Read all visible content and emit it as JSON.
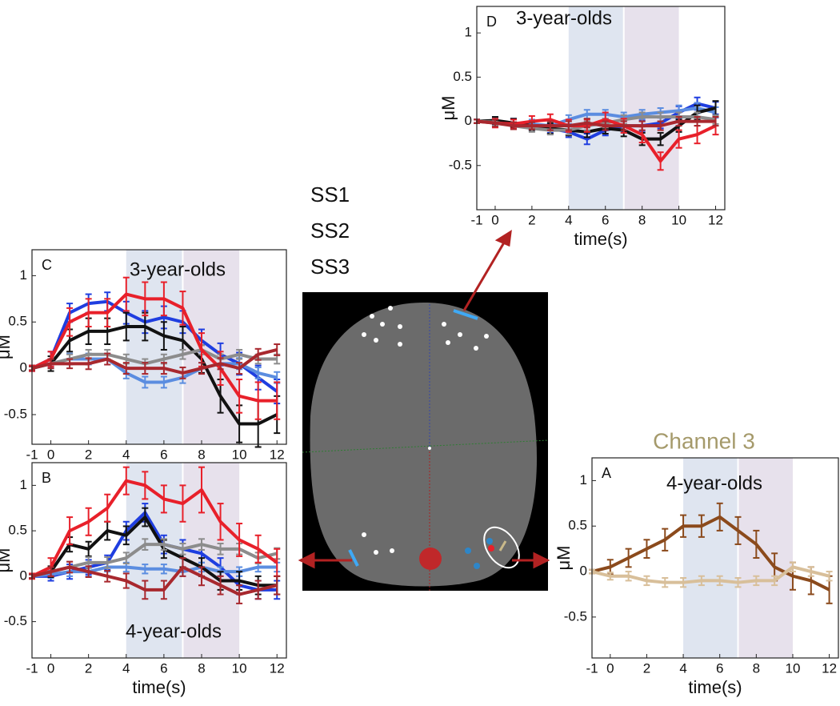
{
  "legend": [
    {
      "name": "SS1",
      "color": "#2e86c8"
    },
    {
      "name": "SS2",
      "color": "#111111"
    },
    {
      "name": "SS3",
      "color": "#e8202a"
    }
  ],
  "chart_data": [
    {
      "type": "line",
      "panel": "D",
      "title": "3-year-olds",
      "xlabel": "time(s)",
      "ylabel": "μM",
      "x": [
        -1,
        0,
        1,
        2,
        3,
        4,
        5,
        6,
        7,
        8,
        9,
        10,
        11,
        12
      ],
      "xlim": [
        -1,
        12.5
      ],
      "ylim": [
        -1,
        1.3
      ],
      "xticks": [
        -1,
        0,
        2,
        4,
        6,
        8,
        10,
        12
      ],
      "yticks": [
        -0.5,
        0,
        0.5,
        1
      ],
      "shading": [
        {
          "range": [
            4,
            7
          ],
          "color": "#dfe5f0"
        },
        {
          "range": [
            7,
            10
          ],
          "color": "#e7e1ec"
        }
      ],
      "series": [
        {
          "color": "#1f3ee0",
          "values": [
            0,
            0,
            -0.02,
            -0.05,
            -0.08,
            -0.12,
            -0.2,
            -0.1,
            -0.05,
            -0.05,
            -0.02,
            0.1,
            0.2,
            0.15
          ],
          "errors": [
            0.02,
            0.05,
            0.05,
            0.05,
            0.05,
            0.06,
            0.06,
            0.06,
            0.06,
            0.06,
            0.06,
            0.07,
            0.07,
            0.07
          ]
        },
        {
          "color": "#5b8de0",
          "values": [
            0,
            0,
            -0.02,
            -0.03,
            -0.05,
            0.02,
            0.08,
            0.08,
            0.05,
            0.08,
            0.1,
            0.12,
            0.15,
            0.1
          ],
          "errors": [
            0.02,
            0.04,
            0.05,
            0.05,
            0.05,
            0.05,
            0.05,
            0.05,
            0.05,
            0.05,
            0.05,
            0.06,
            0.06,
            0.06
          ]
        },
        {
          "color": "#111111",
          "values": [
            0,
            0.01,
            -0.02,
            -0.05,
            -0.08,
            -0.1,
            -0.12,
            -0.08,
            -0.1,
            -0.2,
            -0.2,
            -0.05,
            0.1,
            0.15
          ],
          "errors": [
            0.02,
            0.04,
            0.05,
            0.05,
            0.06,
            0.06,
            0.06,
            0.06,
            0.07,
            0.07,
            0.07,
            0.07,
            0.08,
            0.08
          ]
        },
        {
          "color": "#8c8c8c",
          "values": [
            0,
            -0.01,
            -0.05,
            -0.08,
            -0.1,
            -0.1,
            -0.05,
            -0.02,
            0.02,
            0.05,
            0.05,
            0.05,
            0.05,
            0.02
          ],
          "errors": [
            0.02,
            0.04,
            0.04,
            0.04,
            0.05,
            0.05,
            0.05,
            0.05,
            0.05,
            0.05,
            0.05,
            0.05,
            0.05,
            0.05
          ]
        },
        {
          "color": "#e8202a",
          "values": [
            0,
            -0.02,
            -0.03,
            0,
            0.02,
            -0.05,
            -0.05,
            0.02,
            -0.05,
            -0.15,
            -0.45,
            -0.2,
            -0.15,
            -0.05
          ],
          "errors": [
            0.02,
            0.05,
            0.05,
            0.06,
            0.06,
            0.07,
            0.07,
            0.08,
            0.08,
            0.09,
            0.1,
            0.1,
            0.1,
            0.1
          ]
        },
        {
          "color": "#a8282e",
          "values": [
            0,
            -0.02,
            -0.05,
            -0.05,
            -0.05,
            -0.05,
            -0.02,
            -0.05,
            -0.05,
            -0.05,
            -0.05,
            0,
            0,
            0
          ],
          "errors": [
            0.02,
            0.04,
            0.04,
            0.04,
            0.05,
            0.05,
            0.05,
            0.05,
            0.05,
            0.05,
            0.05,
            0.05,
            0.05,
            0.05
          ]
        }
      ]
    },
    {
      "type": "line",
      "panel": "C",
      "title": "3-year-olds",
      "xlabel": null,
      "ylabel": "μM",
      "x": [
        -1,
        0,
        1,
        2,
        3,
        4,
        5,
        6,
        7,
        8,
        9,
        10,
        11,
        12
      ],
      "xlim": [
        -1,
        12.5
      ],
      "ylim": [
        -0.82,
        1.28
      ],
      "xticks": [
        -1,
        0,
        2,
        4,
        6,
        8,
        10,
        12
      ],
      "yticks": [
        -0.5,
        0,
        0.5,
        1
      ],
      "shading": [
        {
          "range": [
            4,
            7
          ],
          "color": "#dfe5f0"
        },
        {
          "range": [
            7,
            10
          ],
          "color": "#e7e1ec"
        }
      ],
      "series": [
        {
          "color": "#1f3ee0",
          "values": [
            0,
            0.1,
            0.6,
            0.7,
            0.72,
            0.6,
            0.5,
            0.55,
            0.5,
            0.3,
            0.15,
            0.05,
            -0.1,
            -0.25
          ],
          "errors": [
            0.03,
            0.08,
            0.1,
            0.1,
            0.1,
            0.12,
            0.12,
            0.12,
            0.12,
            0.12,
            0.12,
            0.12,
            0.13,
            0.13
          ]
        },
        {
          "color": "#5b8de0",
          "values": [
            0,
            0.05,
            0.1,
            0.1,
            0.1,
            -0.05,
            -0.15,
            -0.15,
            -0.1,
            0,
            0.05,
            0.05,
            -0.05,
            -0.1
          ],
          "errors": [
            0.02,
            0.05,
            0.06,
            0.06,
            0.06,
            0.06,
            0.06,
            0.06,
            0.06,
            0.06,
            0.06,
            0.06,
            0.06,
            0.06
          ]
        },
        {
          "color": "#111111",
          "values": [
            0,
            0.05,
            0.3,
            0.4,
            0.4,
            0.45,
            0.45,
            0.35,
            0.3,
            0.1,
            -0.3,
            -0.6,
            -0.6,
            -0.5
          ],
          "errors": [
            0.03,
            0.08,
            0.12,
            0.14,
            0.14,
            0.15,
            0.15,
            0.15,
            0.15,
            0.15,
            0.18,
            0.2,
            0.25,
            0.2
          ]
        },
        {
          "color": "#8c8c8c",
          "values": [
            0,
            0.05,
            0.1,
            0.15,
            0.15,
            0.1,
            0.05,
            0.1,
            0.15,
            0.2,
            0.1,
            0.15,
            0.1,
            0.1
          ],
          "errors": [
            0.02,
            0.05,
            0.05,
            0.05,
            0.05,
            0.05,
            0.05,
            0.05,
            0.05,
            0.05,
            0.05,
            0.05,
            0.05,
            0.05
          ]
        },
        {
          "color": "#e8202a",
          "values": [
            0,
            0.1,
            0.5,
            0.6,
            0.6,
            0.8,
            0.75,
            0.75,
            0.65,
            0.2,
            0,
            -0.3,
            -0.35,
            -0.35
          ],
          "errors": [
            0.03,
            0.08,
            0.15,
            0.15,
            0.15,
            0.18,
            0.18,
            0.18,
            0.18,
            0.18,
            0.18,
            0.18,
            0.2,
            0.2
          ]
        },
        {
          "color": "#a8282e",
          "values": [
            0,
            0.05,
            0.05,
            0.05,
            0.1,
            0,
            0,
            0,
            -0.05,
            0,
            0.05,
            0,
            0.15,
            0.2
          ],
          "errors": [
            0.02,
            0.05,
            0.05,
            0.06,
            0.06,
            0.06,
            0.06,
            0.06,
            0.06,
            0.06,
            0.06,
            0.06,
            0.06,
            0.06
          ]
        }
      ]
    },
    {
      "type": "line",
      "panel": "B",
      "title": "4-year-olds",
      "xlabel": "time(s)",
      "ylabel": "μM",
      "x": [
        -1,
        0,
        1,
        2,
        3,
        4,
        5,
        6,
        7,
        8,
        9,
        10,
        11,
        12
      ],
      "xlim": [
        -1,
        12.5
      ],
      "ylim": [
        -0.9,
        1.25
      ],
      "xticks": [
        -1,
        0,
        2,
        4,
        6,
        8,
        10,
        12
      ],
      "yticks": [
        -0.5,
        0,
        0.5,
        1
      ],
      "shading": [
        {
          "range": [
            4,
            7
          ],
          "color": "#dfe5f0"
        },
        {
          "range": [
            7,
            10
          ],
          "color": "#e7e1ec"
        }
      ],
      "series": [
        {
          "color": "#1f3ee0",
          "values": [
            0,
            0,
            0.05,
            0.1,
            0.15,
            0.5,
            0.7,
            0.35,
            0.3,
            0.25,
            0.1,
            -0.1,
            -0.15,
            -0.15
          ],
          "errors": [
            0.02,
            0.05,
            0.08,
            0.08,
            0.08,
            0.1,
            0.1,
            0.1,
            0.1,
            0.1,
            0.1,
            0.1,
            0.1,
            0.1
          ]
        },
        {
          "color": "#5b8de0",
          "values": [
            0,
            0.02,
            0.05,
            0.05,
            0.1,
            0.1,
            0.08,
            0.08,
            0.05,
            0.1,
            0.05,
            0.05,
            0.1,
            0.1
          ],
          "errors": [
            0.02,
            0.04,
            0.05,
            0.05,
            0.05,
            0.05,
            0.05,
            0.05,
            0.05,
            0.05,
            0.05,
            0.05,
            0.05,
            0.05
          ]
        },
        {
          "color": "#111111",
          "values": [
            0,
            0.05,
            0.35,
            0.3,
            0.5,
            0.45,
            0.65,
            0.3,
            0.2,
            0.1,
            -0.05,
            -0.05,
            -0.1,
            -0.1
          ],
          "errors": [
            0.02,
            0.06,
            0.08,
            0.08,
            0.1,
            0.1,
            0.1,
            0.1,
            0.1,
            0.1,
            0.1,
            0.1,
            0.1,
            0.1
          ]
        },
        {
          "color": "#8c8c8c",
          "values": [
            0,
            0.05,
            0.1,
            0.15,
            0.15,
            0.2,
            0.35,
            0.35,
            0.3,
            0.35,
            0.3,
            0.3,
            0.2,
            0.25
          ],
          "errors": [
            0.02,
            0.05,
            0.06,
            0.06,
            0.06,
            0.06,
            0.06,
            0.06,
            0.06,
            0.06,
            0.06,
            0.06,
            0.06,
            0.06
          ]
        },
        {
          "color": "#e8202a",
          "values": [
            0,
            0.1,
            0.5,
            0.6,
            0.75,
            1.05,
            1.0,
            0.85,
            0.8,
            0.95,
            0.6,
            0.4,
            0.3,
            0.15
          ],
          "errors": [
            0.03,
            0.1,
            0.15,
            0.15,
            0.15,
            0.15,
            0.15,
            0.15,
            0.2,
            0.25,
            0.2,
            0.18,
            0.15,
            0.15
          ]
        },
        {
          "color": "#a8282e",
          "values": [
            0,
            0.05,
            0.1,
            0.05,
            0,
            -0.05,
            -0.15,
            -0.15,
            0.1,
            0,
            -0.1,
            -0.2,
            -0.15,
            -0.1
          ],
          "errors": [
            0.02,
            0.05,
            0.06,
            0.06,
            0.06,
            0.08,
            0.1,
            0.1,
            0.1,
            0.1,
            0.1,
            0.1,
            0.1,
            0.1
          ]
        }
      ]
    },
    {
      "type": "line",
      "panel": "A",
      "heading": "Channel 3",
      "title": "4-year-olds",
      "xlabel": "time(s)",
      "ylabel": "μM",
      "x": [
        -1,
        0,
        1,
        2,
        3,
        4,
        5,
        6,
        7,
        8,
        9,
        10,
        11,
        12
      ],
      "xlim": [
        -1,
        12.5
      ],
      "ylim": [
        -0.95,
        1.25
      ],
      "xticks": [
        -1,
        0,
        2,
        4,
        6,
        8,
        10,
        12
      ],
      "yticks": [
        -0.5,
        0,
        0.5,
        1
      ],
      "shading": [
        {
          "range": [
            4,
            7
          ],
          "color": "#dfe5f0"
        },
        {
          "range": [
            7,
            10
          ],
          "color": "#e7e1ec"
        }
      ],
      "series": [
        {
          "color": "#8b4a1c",
          "values": [
            0,
            0.05,
            0.15,
            0.25,
            0.35,
            0.5,
            0.5,
            0.6,
            0.45,
            0.3,
            0.05,
            -0.05,
            -0.1,
            -0.2
          ],
          "errors": [
            0.02,
            0.08,
            0.1,
            0.1,
            0.12,
            0.12,
            0.12,
            0.15,
            0.15,
            0.15,
            0.15,
            0.15,
            0.15,
            0.15
          ]
        },
        {
          "color": "#d8bf9a",
          "values": [
            0,
            -0.05,
            -0.05,
            -0.1,
            -0.12,
            -0.12,
            -0.1,
            -0.1,
            -0.12,
            -0.1,
            -0.1,
            0.05,
            0,
            -0.05
          ],
          "errors": [
            0.02,
            0.04,
            0.05,
            0.05,
            0.05,
            0.05,
            0.05,
            0.05,
            0.05,
            0.05,
            0.05,
            0.05,
            0.05,
            0.05
          ]
        }
      ]
    }
  ]
}
